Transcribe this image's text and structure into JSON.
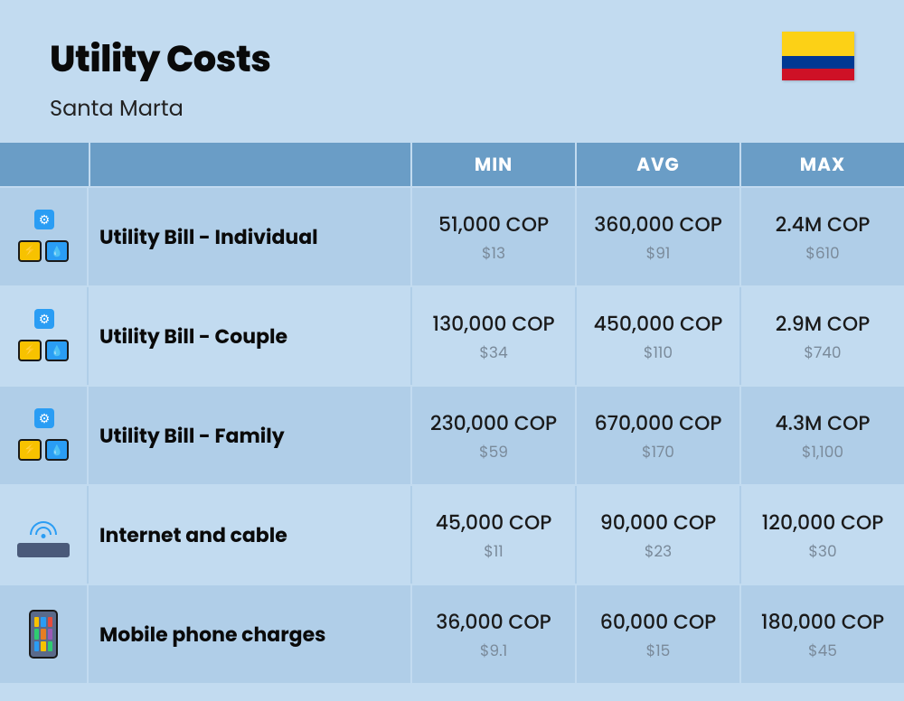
{
  "header": {
    "title": "Utility Costs",
    "subtitle": "Santa Marta"
  },
  "columns": {
    "min": "MIN",
    "avg": "AVG",
    "max": "MAX"
  },
  "rows": [
    {
      "icon": "utility",
      "label": "Utility Bill - Individual",
      "min_cop": "51,000 COP",
      "min_usd": "$13",
      "avg_cop": "360,000 COP",
      "avg_usd": "$91",
      "max_cop": "2.4M COP",
      "max_usd": "$610"
    },
    {
      "icon": "utility",
      "label": "Utility Bill - Couple",
      "min_cop": "130,000 COP",
      "min_usd": "$34",
      "avg_cop": "450,000 COP",
      "avg_usd": "$110",
      "max_cop": "2.9M COP",
      "max_usd": "$740"
    },
    {
      "icon": "utility",
      "label": "Utility Bill - Family",
      "min_cop": "230,000 COP",
      "min_usd": "$59",
      "avg_cop": "670,000 COP",
      "avg_usd": "$170",
      "max_cop": "4.3M COP",
      "max_usd": "$1,100"
    },
    {
      "icon": "router",
      "label": "Internet and cable",
      "min_cop": "45,000 COP",
      "min_usd": "$11",
      "avg_cop": "90,000 COP",
      "avg_usd": "$23",
      "max_cop": "120,000 COP",
      "max_usd": "$30"
    },
    {
      "icon": "phone",
      "label": "Mobile phone charges",
      "min_cop": "36,000 COP",
      "min_usd": "$9.1",
      "avg_cop": "60,000 COP",
      "avg_usd": "$15",
      "max_cop": "180,000 COP",
      "max_usd": "$45"
    }
  ],
  "colors": {
    "background": "#c2dbf0",
    "row_alt": "#b0cee8",
    "header_cell": "#6a9dc6",
    "text_primary": "#0a0a0a",
    "text_secondary": "#7a8a9a",
    "flag_yellow": "#fcd116",
    "flag_blue": "#003893",
    "flag_red": "#ce1126"
  }
}
